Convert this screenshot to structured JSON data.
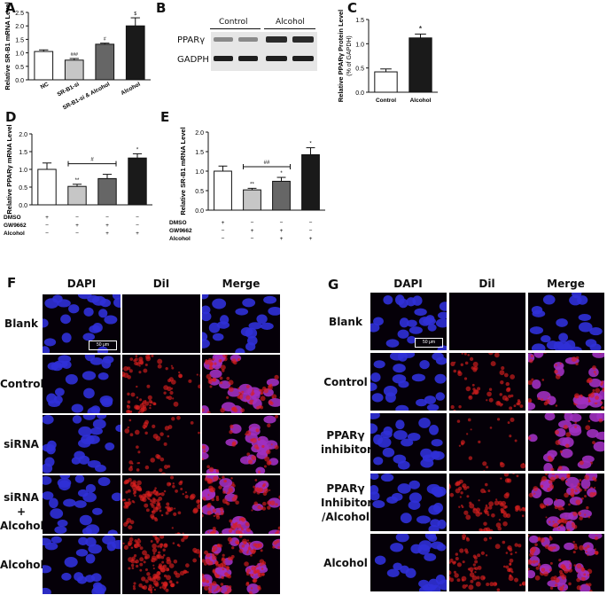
{
  "colors": {
    "white_bar": "#ffffff",
    "light_gray": "#c6c6c6",
    "dark_gray": "#666666",
    "black": "#1a1a1a",
    "dapi": "#2020c0",
    "dil": "#c01818",
    "merge": "#9020a0"
  },
  "panel_letters": {
    "A": "A",
    "B": "B",
    "C": "C",
    "D": "D",
    "E": "E",
    "F": "F",
    "G": "G"
  },
  "chart_data": [
    {
      "id": "A",
      "type": "bar",
      "ylabel": "Relative SR-B1 mRNA Level",
      "ylim": [
        0,
        2.5
      ],
      "yticks": [
        "0.0",
        "0.5",
        "1.0",
        "1.5",
        "2.0",
        "2.5"
      ],
      "categories": [
        "NC",
        "SR-B1-si",
        "SR-B1-si & Alcohol",
        "Alcohol"
      ],
      "values": [
        1.05,
        0.73,
        1.32,
        2.0
      ],
      "errors": [
        0.06,
        0.06,
        0.04,
        0.3
      ],
      "sig": [
        "",
        "###",
        "#",
        "$"
      ]
    },
    {
      "id": "C",
      "type": "bar",
      "ylabel": "Relative PPARγ Protein Level",
      "ylabel2": "(% of GAPDH)",
      "ylim": [
        0,
        1.5
      ],
      "yticks": [
        "0.0",
        "0.5",
        "1.0",
        "1.5"
      ],
      "categories": [
        "Control",
        "Alcohol"
      ],
      "values": [
        0.42,
        1.12
      ],
      "errors": [
        0.06,
        0.08
      ],
      "sig": [
        "",
        "*"
      ]
    },
    {
      "id": "D",
      "type": "bar",
      "ylabel": "Relative PPARγ mRNA Level",
      "ylim": [
        0,
        2.0
      ],
      "yticks": [
        "0.0",
        "0.5",
        "1.0",
        "1.5",
        "2.0"
      ],
      "values": [
        1.0,
        0.52,
        0.74,
        1.32
      ],
      "errors": [
        0.18,
        0.06,
        0.12,
        0.12
      ],
      "sig": [
        "",
        "**",
        "",
        "*"
      ],
      "bracket": "#",
      "treatments": [
        {
          "name": "DMSO",
          "marks": [
            "+",
            "−",
            "−",
            "−"
          ]
        },
        {
          "name": "GW9662",
          "marks": [
            "−",
            "+",
            "+",
            "−"
          ]
        },
        {
          "name": "Alcohol",
          "marks": [
            "−",
            "−",
            "+",
            "+"
          ]
        }
      ]
    },
    {
      "id": "E",
      "type": "bar",
      "ylabel": "Relative SR-B1 mRNA Level",
      "ylim": [
        0,
        2.0
      ],
      "yticks": [
        "0.0",
        "0.5",
        "1.0",
        "1.5",
        "2.0"
      ],
      "values": [
        1.0,
        0.52,
        0.74,
        1.42
      ],
      "errors": [
        0.13,
        0.04,
        0.1,
        0.18
      ],
      "sig": [
        "",
        "**",
        "*",
        "*"
      ],
      "bracket": "##",
      "treatments": [
        {
          "name": "DMSO",
          "marks": [
            "+",
            "−",
            "−",
            "−"
          ]
        },
        {
          "name": "GW9662",
          "marks": [
            "−",
            "+",
            "+",
            "−"
          ]
        },
        {
          "name": "Alcohol",
          "marks": [
            "−",
            "−",
            "+",
            "+"
          ]
        }
      ]
    }
  ],
  "blot": {
    "group1": "Control",
    "group2": "Alcohol",
    "row1": "PPARγ",
    "row2": "GADPH"
  },
  "panel_f": {
    "columns": [
      "DAPI",
      "DiI",
      "Merge"
    ],
    "rows": [
      "Blank",
      "Control",
      "siRNA",
      "siRNA +\nAlcohol",
      "Alcohol"
    ],
    "scale": "50 μm"
  },
  "panel_g": {
    "columns": [
      "DAPI",
      "Dil",
      "Merge"
    ],
    "rows": [
      "Blank",
      "Control",
      "PPARγ\ninhibitor",
      "PPARγ\nInhibitor\n/Alcohol",
      "Alcohol"
    ],
    "scale": "50 μm"
  }
}
